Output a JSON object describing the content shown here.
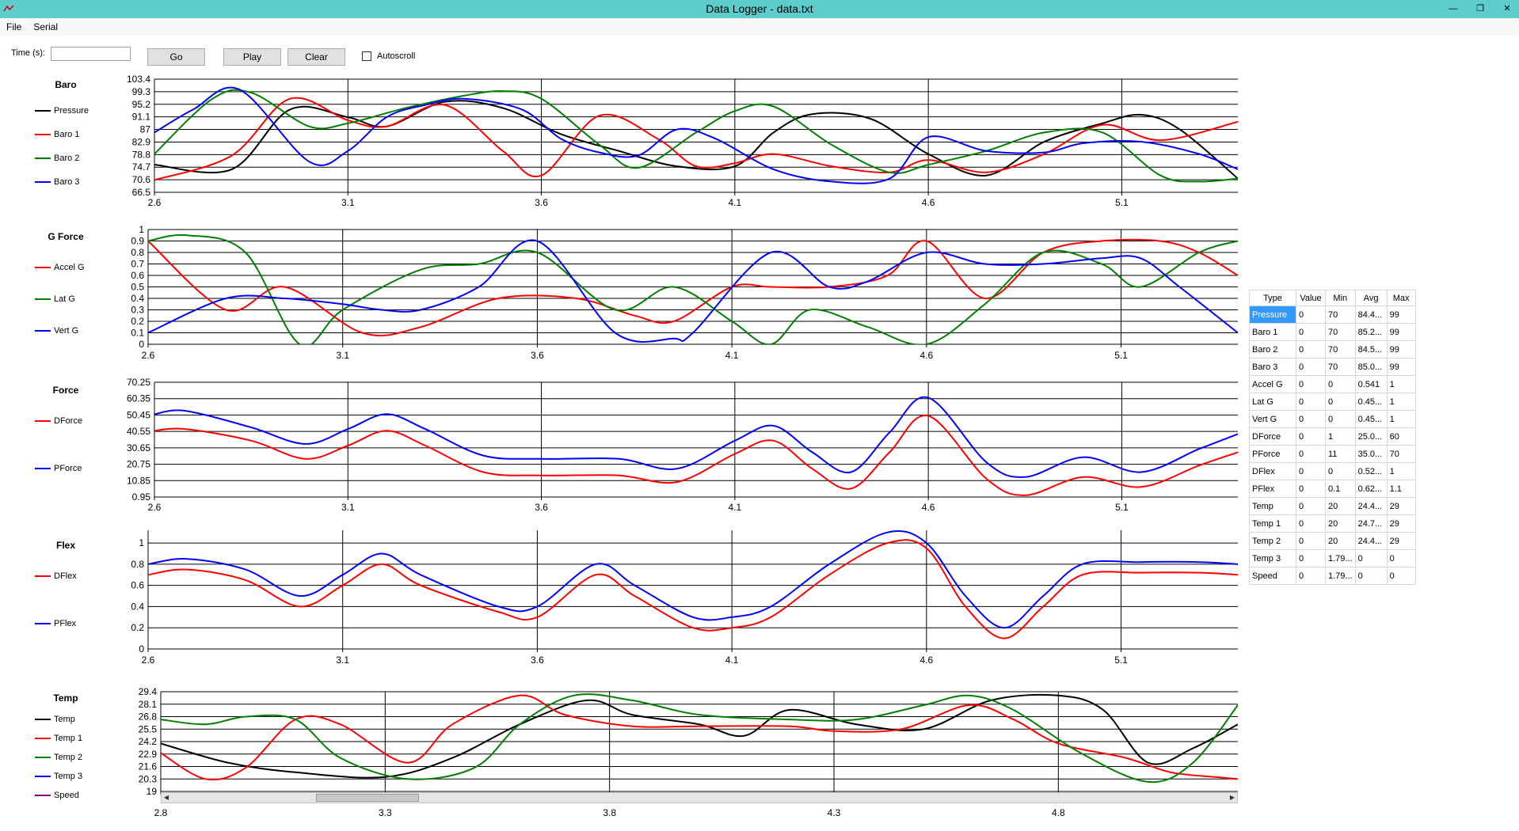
{
  "window": {
    "title": "Data Logger - data.txt",
    "controls": [
      "—",
      "❐",
      "✕"
    ]
  },
  "menu": [
    "File",
    "Serial"
  ],
  "toolbar": {
    "time_label": "Time (s):",
    "time_value": "",
    "go_label": "Go",
    "play_label": "Play",
    "clear_label": "Clear",
    "autoscroll_label": "Autoscroll",
    "autoscroll_checked": false
  },
  "charts": [
    {
      "title": "Baro",
      "yticks": [
        "103.4",
        "99.3",
        "95.2",
        "91.1",
        "87",
        "82.9",
        "78.8",
        "74.7",
        "70.6",
        "66.5"
      ],
      "ylim": [
        66.5,
        103.4
      ],
      "xticks": [
        "2.6",
        "3.1",
        "3.6",
        "4.1",
        "4.6",
        "5.1"
      ],
      "xlim": [
        2.6,
        5.4
      ],
      "series": [
        {
          "name": "Pressure",
          "color": "#000000",
          "x": [
            2.6,
            2.8,
            2.95,
            3.1,
            3.2,
            3.35,
            3.5,
            3.65,
            3.8,
            3.95,
            4.1,
            4.2,
            4.3,
            4.45,
            4.6,
            4.75,
            4.9,
            5.05,
            5.15,
            5.25,
            5.4
          ],
          "y": [
            75.5,
            74,
            93.5,
            91,
            88,
            96,
            94,
            85.5,
            80,
            75,
            75,
            86,
            92,
            90.5,
            79,
            72,
            83,
            89,
            91.8,
            87,
            71
          ]
        },
        {
          "name": "Baro 1",
          "color": "#ff0000",
          "x": [
            2.6,
            2.8,
            2.95,
            3.1,
            3.2,
            3.35,
            3.5,
            3.6,
            3.75,
            3.9,
            4.0,
            4.1,
            4.2,
            4.35,
            4.5,
            4.6,
            4.75,
            4.9,
            5.05,
            5.2,
            5.4
          ],
          "y": [
            70.5,
            78.5,
            97,
            90,
            88,
            95,
            80,
            72,
            91.5,
            84,
            75,
            76,
            79,
            75,
            73,
            77,
            73,
            79,
            88.5,
            83.5,
            89.5
          ]
        },
        {
          "name": "Baro 2",
          "color": "#008000",
          "x": [
            2.6,
            2.75,
            2.85,
            3.0,
            3.1,
            3.25,
            3.4,
            3.5,
            3.6,
            3.75,
            3.85,
            4.0,
            4.1,
            4.2,
            4.35,
            4.5,
            4.6,
            4.75,
            4.9,
            5.05,
            5.2,
            5.3,
            5.4
          ],
          "y": [
            79,
            97,
            99,
            88,
            89,
            94,
            98,
            99.5,
            97,
            82,
            74.5,
            86,
            93,
            94.5,
            82,
            73,
            75.5,
            80,
            86,
            86,
            72,
            70,
            71
          ]
        },
        {
          "name": "Baro 3",
          "color": "#0000ff",
          "x": [
            2.6,
            2.7,
            2.82,
            3.0,
            3.1,
            3.2,
            3.3,
            3.4,
            3.55,
            3.65,
            3.75,
            3.85,
            3.95,
            4.05,
            4.2,
            4.35,
            4.5,
            4.6,
            4.75,
            4.9,
            5.0,
            5.15,
            5.3,
            5.4
          ],
          "y": [
            86,
            93.5,
            100,
            76.5,
            80,
            91,
            95,
            97,
            93.5,
            84,
            79.5,
            78.5,
            87,
            84,
            74,
            70,
            71,
            84.5,
            80,
            79.5,
            82.5,
            83,
            79,
            74
          ]
        }
      ]
    },
    {
      "title": "G Force",
      "yticks": [
        "1",
        "0.9",
        "0.8",
        "0.7",
        "0.6",
        "0.5",
        "0.4",
        "0.3",
        "0.2",
        "0.1",
        "0"
      ],
      "ylim": [
        0,
        1
      ],
      "xticks": [
        "2.6",
        "3.1",
        "3.6",
        "4.1",
        "4.6",
        "5.1"
      ],
      "xlim": [
        2.6,
        5.4
      ],
      "series": [
        {
          "name": "Accel G",
          "color": "#ff0000",
          "x": [
            2.6,
            2.8,
            2.95,
            3.15,
            3.3,
            3.5,
            3.7,
            3.85,
            3.95,
            4.1,
            4.2,
            4.35,
            4.5,
            4.6,
            4.75,
            4.9,
            5.05,
            5.2,
            5.3,
            5.4
          ],
          "y": [
            0.9,
            0.3,
            0.5,
            0.1,
            0.15,
            0.4,
            0.4,
            0.25,
            0.2,
            0.5,
            0.5,
            0.5,
            0.6,
            0.9,
            0.4,
            0.8,
            0.9,
            0.9,
            0.8,
            0.6
          ]
        },
        {
          "name": "Lat G",
          "color": "#008000",
          "x": [
            2.6,
            2.7,
            2.85,
            2.99,
            3.1,
            3.3,
            3.45,
            3.6,
            3.8,
            3.95,
            4.1,
            4.2,
            4.3,
            4.45,
            4.6,
            4.75,
            4.9,
            5.05,
            5.15,
            5.3,
            5.4
          ],
          "y": [
            0.9,
            0.95,
            0.8,
            0.0,
            0.3,
            0.65,
            0.7,
            0.8,
            0.3,
            0.5,
            0.2,
            0.0,
            0.3,
            0.15,
            0.0,
            0.35,
            0.8,
            0.7,
            0.5,
            0.8,
            0.9
          ]
        },
        {
          "name": "Vert G",
          "color": "#0000ff",
          "x": [
            2.6,
            2.8,
            2.95,
            3.1,
            3.2,
            3.3,
            3.45,
            3.6,
            3.8,
            3.95,
            4.0,
            4.2,
            4.35,
            4.45,
            4.6,
            4.75,
            4.9,
            5.05,
            5.15,
            5.25,
            5.4
          ],
          "y": [
            0.1,
            0.4,
            0.4,
            0.35,
            0.3,
            0.3,
            0.5,
            0.9,
            0.1,
            0.05,
            0.1,
            0.8,
            0.5,
            0.55,
            0.8,
            0.7,
            0.7,
            0.75,
            0.75,
            0.5,
            0.1
          ]
        }
      ]
    },
    {
      "title": "Force",
      "yticks": [
        "70.25",
        "60.35",
        "50.45",
        "40.55",
        "30.65",
        "20.75",
        "10.85",
        "0.95"
      ],
      "ylim": [
        0.95,
        70.25
      ],
      "xticks": [
        "2.6",
        "3.1",
        "3.6",
        "4.1",
        "4.6",
        "5.1"
      ],
      "xlim": [
        2.6,
        5.4
      ],
      "series": [
        {
          "name": "DForce",
          "color": "#ff0000",
          "x": [
            2.6,
            2.68,
            2.85,
            2.99,
            3.1,
            3.2,
            3.3,
            3.45,
            3.6,
            3.8,
            3.95,
            4.1,
            4.2,
            4.3,
            4.4,
            4.5,
            4.6,
            4.75,
            4.85,
            5.0,
            5.15,
            5.3,
            5.4
          ],
          "y": [
            41,
            42,
            35,
            24,
            32,
            41,
            32,
            16,
            14,
            14,
            10,
            27,
            35,
            18,
            6,
            28,
            50,
            12,
            2,
            13,
            7,
            20,
            28
          ]
        },
        {
          "name": "PForce",
          "color": "#0000ff",
          "x": [
            2.6,
            2.68,
            2.85,
            2.99,
            3.1,
            3.2,
            3.3,
            3.45,
            3.6,
            3.8,
            3.95,
            4.1,
            4.2,
            4.3,
            4.4,
            4.5,
            4.6,
            4.75,
            4.85,
            5.0,
            5.15,
            5.3,
            5.4
          ],
          "y": [
            51,
            53,
            43,
            33,
            42,
            51,
            42,
            26,
            24,
            24,
            18,
            35,
            44,
            28,
            16,
            40,
            61,
            22,
            13,
            25,
            16,
            30,
            39
          ]
        }
      ]
    },
    {
      "title": "Flex",
      "yticks": [
        "1",
        "0.8",
        "0.6",
        "0.4",
        "0.2",
        "0"
      ],
      "ylim": [
        0,
        1.12
      ],
      "xticks": [
        "2.6",
        "3.1",
        "3.6",
        "4.1",
        "4.6",
        "5.1"
      ],
      "xlim": [
        2.6,
        5.4
      ],
      "series": [
        {
          "name": "DFlex",
          "color": "#ff0000",
          "x": [
            2.6,
            2.7,
            2.85,
            2.99,
            3.1,
            3.2,
            3.3,
            3.5,
            3.6,
            3.75,
            3.85,
            4.0,
            4.1,
            4.2,
            4.35,
            4.5,
            4.6,
            4.7,
            4.8,
            4.9,
            5.0,
            5.15,
            5.3,
            5.4
          ],
          "y": [
            0.7,
            0.75,
            0.65,
            0.4,
            0.6,
            0.8,
            0.6,
            0.35,
            0.3,
            0.7,
            0.5,
            0.2,
            0.2,
            0.3,
            0.7,
            1.0,
            0.95,
            0.4,
            0.1,
            0.4,
            0.7,
            0.72,
            0.72,
            0.7
          ]
        },
        {
          "name": "PFlex",
          "color": "#0000ff",
          "x": [
            2.6,
            2.7,
            2.85,
            2.99,
            3.1,
            3.2,
            3.3,
            3.5,
            3.6,
            3.75,
            3.85,
            4.0,
            4.1,
            4.2,
            4.35,
            4.5,
            4.6,
            4.7,
            4.8,
            4.9,
            5.0,
            5.15,
            5.3,
            5.4
          ],
          "y": [
            0.8,
            0.85,
            0.75,
            0.5,
            0.7,
            0.9,
            0.7,
            0.4,
            0.4,
            0.8,
            0.6,
            0.3,
            0.3,
            0.4,
            0.8,
            1.1,
            1.0,
            0.5,
            0.2,
            0.5,
            0.8,
            0.82,
            0.82,
            0.8
          ]
        }
      ]
    },
    {
      "title": "Temp",
      "yticks": [
        "29.4",
        "28.1",
        "26.8",
        "25.5",
        "24.2",
        "22.9",
        "21.6",
        "20.3",
        "19"
      ],
      "ylim": [
        19,
        29.4
      ],
      "xticks": [
        "2.8",
        "3.3",
        "3.8",
        "4.3",
        "4.8"
      ],
      "xlim": [
        2.8,
        5.2
      ],
      "series": [
        {
          "name": "Temp",
          "color": "#000000",
          "x": [
            2.8,
            2.95,
            3.1,
            3.3,
            3.45,
            3.6,
            3.75,
            3.85,
            4.0,
            4.1,
            4.2,
            4.35,
            4.5,
            4.65,
            4.8,
            4.9,
            5.0,
            5.1,
            5.2
          ],
          "y": [
            24,
            22,
            21,
            20.5,
            22.5,
            26,
            28.5,
            27,
            26,
            24.8,
            27.5,
            26,
            25.5,
            28.5,
            29,
            27.5,
            22,
            23.5,
            26
          ]
        },
        {
          "name": "Temp 1",
          "color": "#ff0000",
          "x": [
            2.8,
            2.9,
            2.99,
            3.1,
            3.2,
            3.35,
            3.45,
            3.6,
            3.7,
            3.85,
            4.0,
            4.2,
            4.3,
            4.45,
            4.6,
            4.7,
            4.8,
            4.95,
            5.05,
            5.15,
            5.2
          ],
          "y": [
            23,
            20.3,
            21.5,
            26.5,
            26,
            22,
            26,
            29,
            27,
            25.8,
            25.8,
            25.8,
            25.3,
            25.5,
            28,
            26.5,
            24,
            22.5,
            21,
            20.5,
            20.3
          ]
        },
        {
          "name": "Temp 2",
          "color": "#008000",
          "x": [
            2.8,
            2.9,
            2.99,
            3.1,
            3.2,
            3.35,
            3.5,
            3.6,
            3.72,
            3.85,
            4.0,
            4.2,
            4.35,
            4.5,
            4.6,
            4.7,
            4.85,
            5.0,
            5.1,
            5.2
          ],
          "y": [
            26.5,
            26,
            26.8,
            26.5,
            22.5,
            20.3,
            21.5,
            26,
            29,
            28.5,
            27,
            26.5,
            26.5,
            28,
            29,
            27.5,
            23,
            20,
            22,
            28
          ]
        },
        {
          "name": "Temp 3",
          "color": "#0000ff",
          "x": [],
          "y": []
        },
        {
          "name": "Speed",
          "color": "#800080",
          "x": [],
          "y": []
        }
      ]
    }
  ],
  "stats": {
    "headers": [
      "Type",
      "Value",
      "Min",
      "Avg",
      "Max"
    ],
    "selected": "Pressure",
    "rows": [
      [
        "Pressure",
        "0",
        "70",
        "84.4...",
        "99"
      ],
      [
        "Baro 1",
        "0",
        "70",
        "85.2...",
        "99"
      ],
      [
        "Baro 2",
        "0",
        "70",
        "84.5...",
        "99"
      ],
      [
        "Baro 3",
        "0",
        "70",
        "85.0...",
        "99"
      ],
      [
        "Accel G",
        "0",
        "0",
        "0.541",
        "1"
      ],
      [
        "Lat G",
        "0",
        "0",
        "0.45...",
        "1"
      ],
      [
        "Vert G",
        "0",
        "0",
        "0.45...",
        "1"
      ],
      [
        "DForce",
        "0",
        "1",
        "25.0...",
        "60"
      ],
      [
        "PForce",
        "0",
        "11",
        "35.0...",
        "70"
      ],
      [
        "DFlex",
        "0",
        "0",
        "0.52...",
        "1"
      ],
      [
        "PFlex",
        "0",
        "0.1",
        "0.62...",
        "1.1"
      ],
      [
        "Temp",
        "0",
        "20",
        "24.4...",
        "29"
      ],
      [
        "Temp 1",
        "0",
        "20",
        "24.7...",
        "29"
      ],
      [
        "Temp 2",
        "0",
        "20",
        "24.4...",
        "29"
      ],
      [
        "Temp 3",
        "0",
        "1.79...",
        "0",
        "0"
      ],
      [
        "Speed",
        "0",
        "1.79...",
        "0",
        "0"
      ]
    ]
  }
}
